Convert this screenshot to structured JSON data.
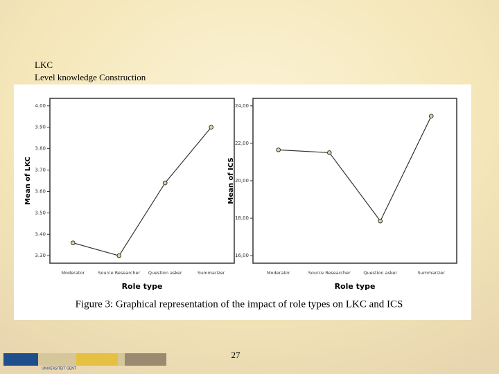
{
  "header": {
    "line1": "LKC",
    "line2": "Level knowledge Construction"
  },
  "chart_data": [
    {
      "type": "line",
      "y_label": "Mean of LKC",
      "x_label": "Role type",
      "categories": [
        "Moderator",
        "Source Researcher",
        "Question asker",
        "Summarizer"
      ],
      "values": [
        3.36,
        3.3,
        3.64,
        3.9
      ],
      "color": "#333333",
      "marker_color": "#d8d8a0",
      "ylim": [
        3.265,
        4.035
      ],
      "yticks": [
        {
          "value": 3.3,
          "label": "3.30"
        },
        {
          "value": 3.4,
          "label": "3.40"
        },
        {
          "value": 3.5,
          "label": "3.50"
        },
        {
          "value": 3.6,
          "label": "3.60"
        },
        {
          "value": 3.7,
          "label": "3.70"
        },
        {
          "value": 3.8,
          "label": "3.80"
        },
        {
          "value": 3.9,
          "label": "3.90"
        },
        {
          "value": 4,
          "label": "4.00"
        }
      ]
    },
    {
      "type": "line",
      "y_label": "Mean of ICS",
      "x_label": "Role type",
      "categories": [
        "Moderator",
        "Source Researcher",
        "Question asker",
        "Summarizer"
      ],
      "values": [
        21.65,
        21.5,
        17.85,
        23.45
      ],
      "color": "#333333",
      "marker_color": "#d8d8a0",
      "ylim": [
        15.6,
        24.4
      ],
      "yticks": [
        {
          "value": 16,
          "label": "16,00"
        },
        {
          "value": 18,
          "label": "18,00"
        },
        {
          "value": 20,
          "label": "20,00"
        },
        {
          "value": 22,
          "label": "22,00"
        },
        {
          "value": 24,
          "label": "24,00"
        }
      ]
    }
  ],
  "caption": "Figure 3: Graphical representation of the impact of role types on LKC and ICS",
  "footer": {
    "page": "27",
    "logo": "UNIVERSITEIT GENT"
  }
}
